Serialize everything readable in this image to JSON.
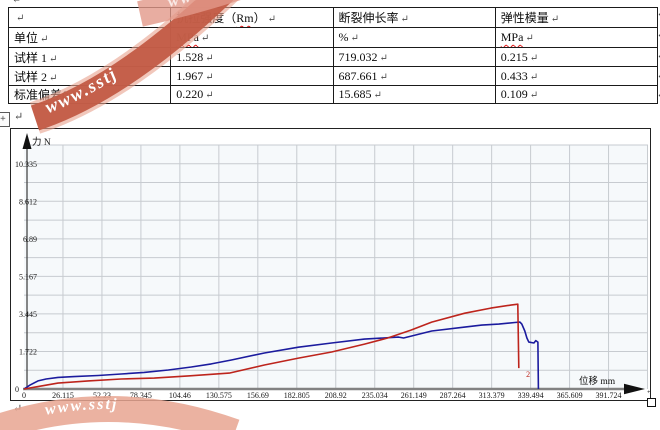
{
  "document": {
    "paragraph_mark": "↵",
    "table": {
      "headers": [
        "",
        "抗拉强度（Rm）",
        "断裂伸长率",
        "弹性模量"
      ],
      "rows": [
        [
          "单位",
          "MPa",
          "%",
          "MPa"
        ],
        [
          "试样 1",
          "1.528",
          "719.032",
          "0.215"
        ],
        [
          "试样 2",
          "1.967",
          "687.661",
          "0.433"
        ],
        [
          "标准偏差(n)",
          "0.220",
          "15.685",
          "0.109"
        ]
      ]
    },
    "watermark": {
      "text": "www.sstj",
      "band_color": "#c25b45",
      "band_light_color": "#e8a28e"
    }
  },
  "chart_data": {
    "type": "line",
    "title": "",
    "xlabel": "位移 mm",
    "ylabel": "力 N",
    "xlim": [
      0,
      417.84
    ],
    "ylim": [
      0,
      11.2
    ],
    "grid": true,
    "plot_bg": "#f6f9fb",
    "grid_color": "#c7cbd0",
    "x_ticks": [
      "0",
      "26.115",
      "52.23",
      "78.345",
      "104.46",
      "130.575",
      "156.69",
      "182.805",
      "208.92",
      "235.034",
      "261.149",
      "287.264",
      "313.379",
      "339.494",
      "365.609",
      "391.724"
    ],
    "y_ticks": [
      "0",
      "1.722",
      "3.445",
      "5.167",
      "6.89",
      "8.612",
      "10.335"
    ],
    "series": [
      {
        "name": "试样 1",
        "color": "#1b1b9e",
        "points": [
          [
            0,
            0
          ],
          [
            4,
            0.18
          ],
          [
            9.4,
            0.37
          ],
          [
            14.8,
            0.46
          ],
          [
            22.8,
            0.53
          ],
          [
            33.6,
            0.57
          ],
          [
            49.7,
            0.62
          ],
          [
            65.1,
            0.69
          ],
          [
            80.5,
            0.76
          ],
          [
            96.7,
            0.87
          ],
          [
            112.1,
            1.01
          ],
          [
            125.5,
            1.15
          ],
          [
            139,
            1.33
          ],
          [
            161.1,
            1.65
          ],
          [
            183.9,
            1.92
          ],
          [
            206.1,
            2.11
          ],
          [
            228.2,
            2.29
          ],
          [
            251.1,
            2.38
          ],
          [
            254.4,
            2.34
          ],
          [
            273.2,
            2.66
          ],
          [
            295.4,
            2.84
          ],
          [
            306.8,
            2.93
          ],
          [
            318.2,
            2.98
          ],
          [
            328.9,
            3.05
          ],
          [
            332.3,
            3.07
          ],
          [
            333.6,
            2.98
          ],
          [
            335.6,
            2.66
          ],
          [
            337,
            2.34
          ],
          [
            338.3,
            2.15
          ],
          [
            341.7,
            2.11
          ],
          [
            343,
            2.22
          ],
          [
            344.4,
            2.15
          ],
          [
            344.7,
            0
          ]
        ]
      },
      {
        "name": "试样 2",
        "color": "#bd241c",
        "end_label": "2",
        "end_label_at": [
          336.5,
          0.55
        ],
        "points": [
          [
            0,
            0
          ],
          [
            9.4,
            0.11
          ],
          [
            22.8,
            0.27
          ],
          [
            43,
            0.37
          ],
          [
            65.1,
            0.46
          ],
          [
            87.3,
            0.5
          ],
          [
            110.1,
            0.6
          ],
          [
            137.6,
            0.73
          ],
          [
            161.1,
            1.1
          ],
          [
            183.9,
            1.42
          ],
          [
            206.1,
            1.7
          ],
          [
            228.2,
            2.06
          ],
          [
            243.7,
            2.34
          ],
          [
            259.1,
            2.7
          ],
          [
            273.2,
            3.07
          ],
          [
            295.4,
            3.48
          ],
          [
            312.8,
            3.71
          ],
          [
            326.2,
            3.85
          ],
          [
            330.9,
            3.89
          ],
          [
            331.6,
            0.96
          ]
        ]
      }
    ]
  }
}
